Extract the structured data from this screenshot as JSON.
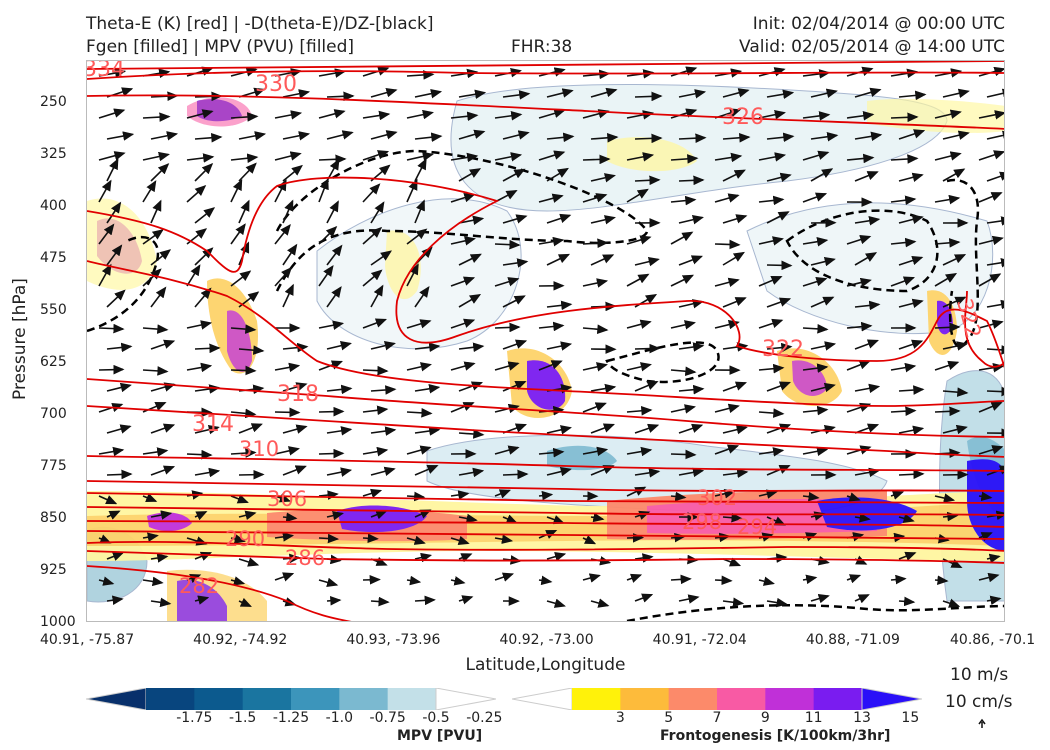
{
  "header": {
    "title_line1_left": "Theta-E (K) [red] | -D(theta-E)/DZ-[black]",
    "title_line2_left": "Fgen [filled] | MPV (PVU) [filled]",
    "fhr": "FHR:38",
    "init": "Init: 02/04/2014 @ 00:00 UTC",
    "valid": "Valid: 02/05/2014 @ 14:00 UTC"
  },
  "chart_data": {
    "type": "cross-section",
    "xlabel": "Latitude,Longitude",
    "ylabel": "Pressure [hPa]",
    "x_ticks": [
      "40.91, -75.87",
      "40.92, -74.92",
      "40.93, -73.96",
      "40.92, -73.00",
      "40.91, -72.04",
      "40.88, -71.09",
      "40.86, -70.1"
    ],
    "y_ticks": [
      250,
      325,
      400,
      475,
      550,
      625,
      700,
      775,
      850,
      925,
      1000
    ],
    "ylim": [
      1000,
      190
    ],
    "theta_e_labels": [
      "334",
      "330",
      "326",
      "322",
      "318",
      "314",
      "310",
      "306",
      "302",
      "298",
      "294",
      "290",
      "286",
      "282",
      "322"
    ],
    "colorbars": {
      "mpv": {
        "label": "MPV [PVU]",
        "ticks": [
          "-1.75",
          "-1.5",
          "-1.25",
          "-1.0",
          "-0.75",
          "-0.5",
          "-0.25"
        ],
        "colors": [
          "#08306b",
          "#08457e",
          "#0c5a8e",
          "#1a75a0",
          "#3c95bb",
          "#7bb9d0",
          "#c3e0e8",
          "#ffffff"
        ]
      },
      "fgen": {
        "label": "Frontogenesis [K/100km/3hr]",
        "ticks": [
          "3",
          "5",
          "7",
          "9",
          "11",
          "13",
          "15"
        ],
        "colors": [
          "#ffffff",
          "#fff20a",
          "#fdbb3b",
          "#fc8a6a",
          "#f85aa4",
          "#c030d8",
          "#7a1cf0",
          "#2a10f8"
        ]
      }
    },
    "reference_vectors": [
      "10 m/s",
      "10 cm/s"
    ]
  }
}
